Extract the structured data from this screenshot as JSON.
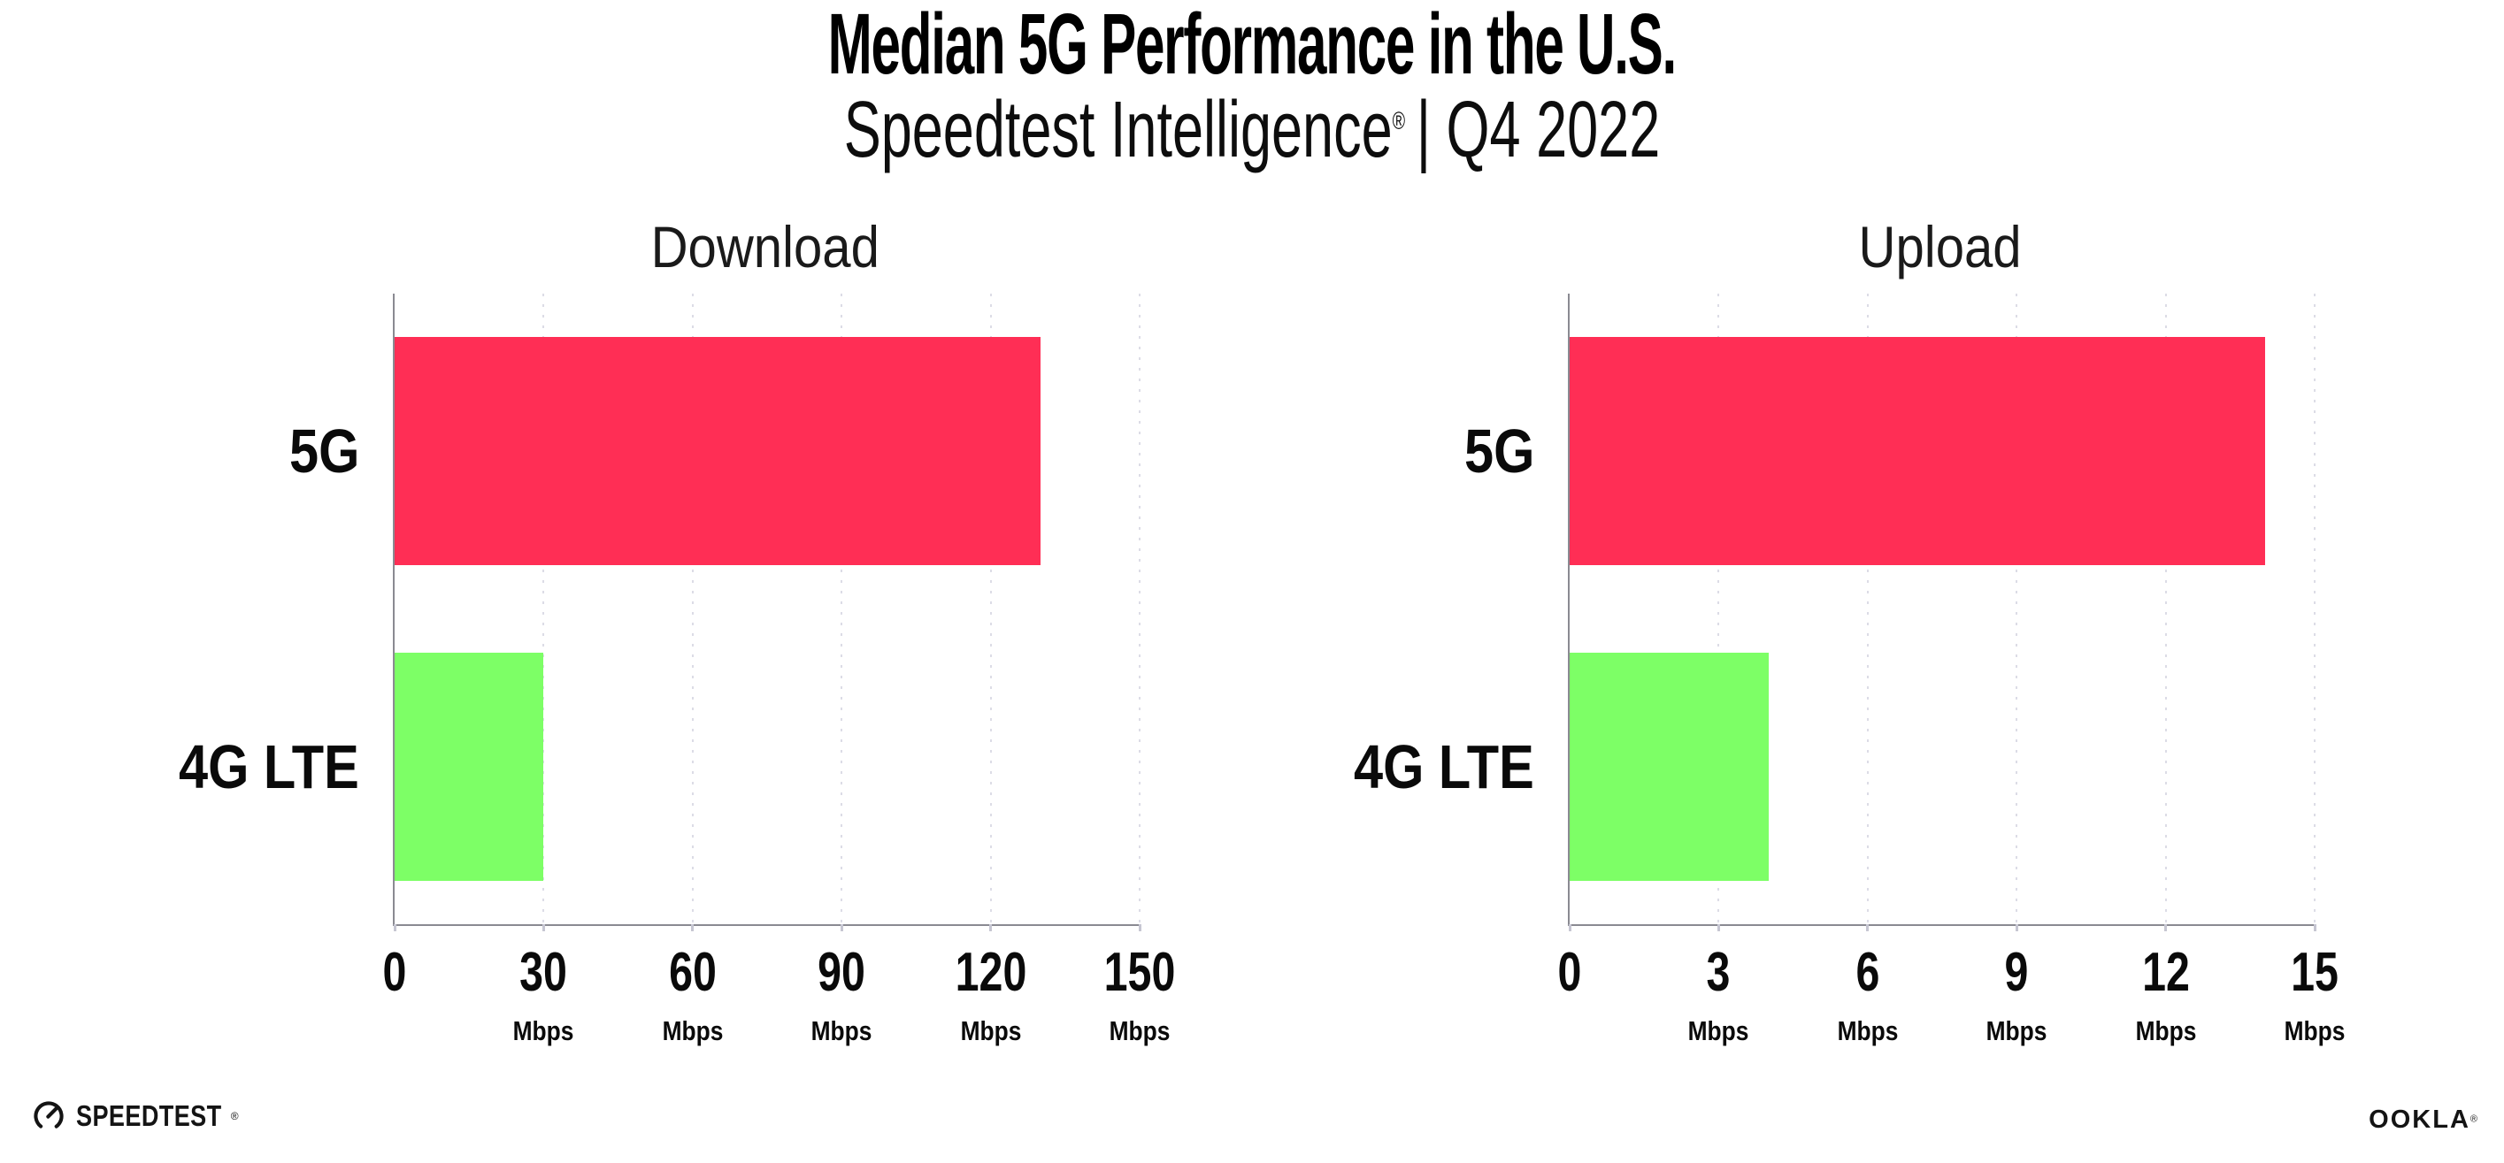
{
  "header": {
    "title": "Median 5G Performance in the U.S.",
    "subtitle_brand": "Speedtest Intelligence",
    "subtitle_mark": "®",
    "subtitle_rest": "| Q4 2022"
  },
  "chart_data": [
    {
      "type": "bar",
      "orientation": "horizontal",
      "title": "Download",
      "categories": [
        "5G",
        "4G LTE"
      ],
      "values": [
        130,
        30
      ],
      "unit": "Mbps",
      "xlabel": "",
      "ylabel": "",
      "xlim": [
        0,
        150
      ],
      "xticks": [
        0,
        30,
        60,
        90,
        120,
        150
      ],
      "bar_colors": [
        "#FF2E55",
        "#7DFF66"
      ],
      "grid": "dotted-vertical",
      "legend": "none"
    },
    {
      "type": "bar",
      "orientation": "horizontal",
      "title": "Upload",
      "categories": [
        "5G",
        "4G LTE"
      ],
      "values": [
        14,
        4
      ],
      "unit": "Mbps",
      "xlabel": "",
      "ylabel": "",
      "xlim": [
        0,
        15
      ],
      "xticks": [
        0,
        3,
        6,
        9,
        12,
        15
      ],
      "bar_colors": [
        "#FF2E55",
        "#7DFF66"
      ],
      "grid": "dotted-vertical",
      "legend": "none"
    }
  ],
  "footer": {
    "speedtest_text": "SPEEDTEST",
    "speedtest_mark": "®",
    "ookla_text": "OOKLA",
    "ookla_mark": "®"
  },
  "colors": {
    "bar_5g": "#FF2E55",
    "bar_4g_lte": "#7DFF66",
    "axis": "#8a8a92",
    "gridline": "#dcdce6",
    "text": "#0a0a0a"
  }
}
